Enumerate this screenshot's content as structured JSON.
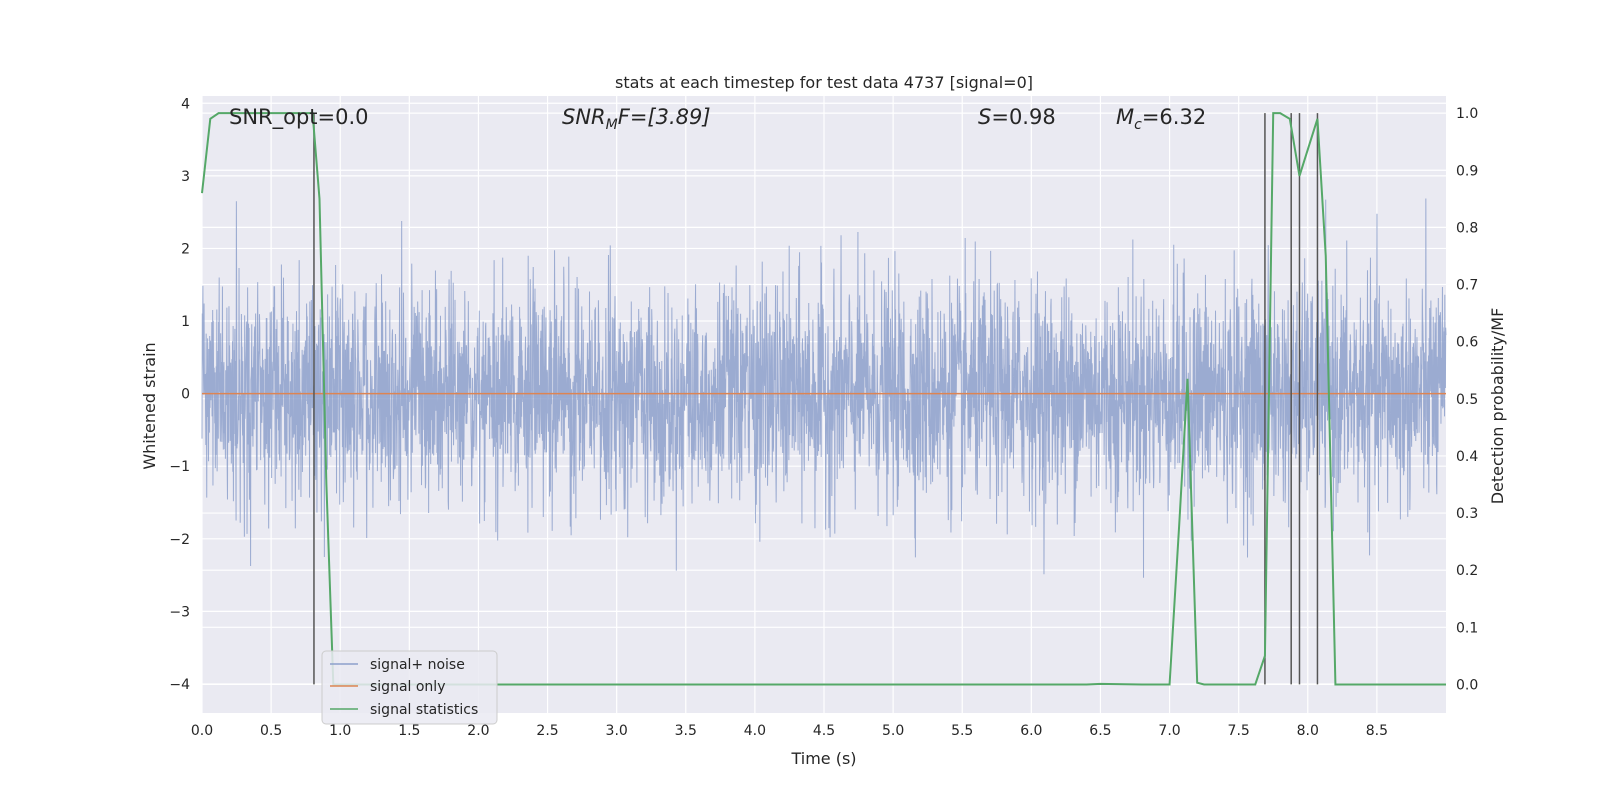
{
  "chart_data": {
    "type": "line",
    "title": "stats at each timestep for test data 4737 [signal=0]",
    "xlabel": "Time (s)",
    "ylabel_left": "Whitened strain",
    "ylabel_right": "Detection probability/MF",
    "xlim": [
      0,
      9.0
    ],
    "ylim_left": [
      -4.4,
      4.1
    ],
    "ylim_right": [
      -0.05,
      1.03
    ],
    "x_ticks": [
      0.0,
      0.5,
      1.0,
      1.5,
      2.0,
      2.5,
      3.0,
      3.5,
      4.0,
      4.5,
      5.0,
      5.5,
      6.0,
      6.5,
      7.0,
      7.5,
      8.0,
      8.5
    ],
    "x_tick_labels": [
      "0.0",
      "0.5",
      "1.0",
      "1.5",
      "2.0",
      "2.5",
      "3.0",
      "3.5",
      "4.0",
      "4.5",
      "5.0",
      "5.5",
      "6.0",
      "6.5",
      "7.0",
      "7.5",
      "8.0",
      "8.5"
    ],
    "y_left_ticks": [
      -4,
      -3,
      -2,
      -1,
      0,
      1,
      2,
      3,
      4
    ],
    "y_left_tick_labels": [
      "−4",
      "−3",
      "−2",
      "−1",
      "0",
      "1",
      "2",
      "3",
      "4"
    ],
    "y_right_ticks": [
      0.0,
      0.1,
      0.2,
      0.3,
      0.4,
      0.5,
      0.6,
      0.7,
      0.8,
      0.9,
      1.0
    ],
    "y_right_tick_labels": [
      "0.0",
      "0.1",
      "0.2",
      "0.3",
      "0.4",
      "0.5",
      "0.6",
      "0.7",
      "0.8",
      "0.9",
      "1.0"
    ],
    "grid": true,
    "legend_position": "lower-left",
    "annotations": {
      "snr_opt": "SNR_opt=0.0",
      "snr_mf_base": "SNR",
      "snr_mf_sub": "M",
      "snr_mf_rest": "F=[3.89]",
      "s_italic": "S",
      "s_rest": "=0.98",
      "mc_base": "M",
      "mc_sub": "c",
      "mc_rest": "=6.32"
    },
    "series": [
      {
        "name": "signal+ noise",
        "color": "#8da0cb",
        "description_kind": "noise",
        "amplitude_std": 0.75
      },
      {
        "name": "signal only",
        "color": "#dd8452",
        "constant": 0.0
      },
      {
        "name": "signal statistics",
        "color": "#55a868",
        "axis": "right",
        "x": [
          0.0,
          0.06,
          0.12,
          0.2,
          0.3,
          0.4,
          0.5,
          0.6,
          0.7,
          0.8,
          0.85,
          0.9,
          0.95,
          1.0,
          1.5,
          2.0,
          2.5,
          3.0,
          3.5,
          4.0,
          4.5,
          5.0,
          5.5,
          6.0,
          6.4,
          6.5,
          6.8,
          7.0,
          7.07,
          7.13,
          7.2,
          7.25,
          7.4,
          7.5,
          7.62,
          7.69,
          7.75,
          7.8,
          7.87,
          7.94,
          8.07,
          8.13,
          8.2,
          8.25,
          8.5,
          9.0
        ],
        "y": [
          0.86,
          0.99,
          1.0,
          1.0,
          1.0,
          1.0,
          1.0,
          1.0,
          1.0,
          1.0,
          0.85,
          0.35,
          0.0,
          0.0,
          0.0,
          0.0,
          0.0,
          0.0,
          0.0,
          0.0,
          0.0,
          0.0,
          0.0,
          0.0,
          0.0,
          0.001,
          0.0,
          0.0,
          0.28,
          0.535,
          0.003,
          0.0,
          0.0,
          0.0,
          0.0,
          0.05,
          1.0,
          1.0,
          0.99,
          0.89,
          0.99,
          0.75,
          0.0,
          0.0,
          0.0,
          0.0
        ]
      }
    ],
    "vlines": [
      0.81,
      7.69,
      7.88,
      7.94,
      8.07
    ],
    "vlines_color": "#555555"
  }
}
